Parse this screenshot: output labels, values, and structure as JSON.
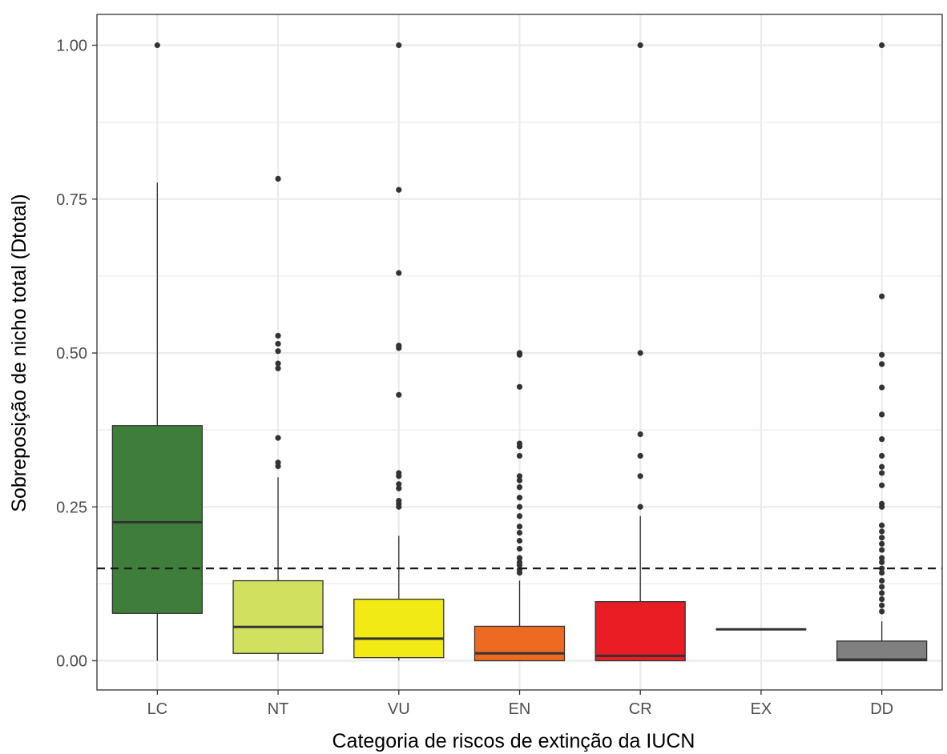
{
  "chart_data": {
    "type": "boxplot",
    "xlabel": "Categoria de riscos de extinção da IUCN",
    "ylabel": "Sobreposição de nicho total (Dtotal)",
    "ylim": [
      -0.048,
      1.048
    ],
    "yticks": [
      "0.00",
      "0.25",
      "0.50",
      "0.75",
      "1.00"
    ],
    "ytick_values": [
      0,
      0.25,
      0.5,
      0.75,
      1.0
    ],
    "grid": true,
    "reference_line": {
      "y": 0.15,
      "style": "dashed"
    },
    "categories": [
      "LC",
      "NT",
      "VU",
      "EN",
      "CR",
      "EX",
      "DD"
    ],
    "boxes": [
      {
        "category": "LC",
        "color": "#3f7d3a",
        "min": 0.0,
        "q1": 0.077,
        "median": 0.225,
        "q3": 0.382,
        "max": 0.777,
        "outliers": [
          1.0
        ]
      },
      {
        "category": "NT",
        "color": "#d1e05e",
        "min": 0.0,
        "q1": 0.012,
        "median": 0.055,
        "q3": 0.13,
        "max": 0.298,
        "outliers": [
          0.316,
          0.322,
          0.362,
          0.475,
          0.483,
          0.503,
          0.515,
          0.528,
          0.783
        ]
      },
      {
        "category": "VU",
        "color": "#f2ea14",
        "min": 0.0,
        "q1": 0.005,
        "median": 0.036,
        "q3": 0.1,
        "max": 0.203,
        "outliers": [
          0.25,
          0.255,
          0.26,
          0.28,
          0.287,
          0.3,
          0.305,
          0.432,
          0.508,
          0.512,
          0.63,
          0.765,
          1.0
        ]
      },
      {
        "category": "EN",
        "color": "#ee6a22",
        "min": 0.0,
        "q1": 0.0,
        "median": 0.012,
        "q3": 0.056,
        "max": 0.13,
        "outliers": [
          0.143,
          0.148,
          0.155,
          0.16,
          0.167,
          0.182,
          0.195,
          0.208,
          0.218,
          0.235,
          0.25,
          0.265,
          0.282,
          0.293,
          0.3,
          0.333,
          0.348,
          0.353,
          0.445,
          0.497,
          0.5
        ]
      },
      {
        "category": "CR",
        "color": "#ea1c24",
        "min": 0.0,
        "q1": 0.0,
        "median": 0.008,
        "q3": 0.096,
        "max": 0.235,
        "outliers": [
          0.25,
          0.3,
          0.333,
          0.368,
          0.5,
          1.0
        ]
      },
      {
        "category": "EX",
        "color": "#555555",
        "min": 0.051,
        "q1": 0.051,
        "median": 0.051,
        "q3": 0.051,
        "max": 0.051,
        "outliers": []
      },
      {
        "category": "DD",
        "color": "#808080",
        "min": 0.0,
        "q1": 0.0,
        "median": 0.002,
        "q3": 0.032,
        "max": 0.064,
        "outliers": [
          0.08,
          0.09,
          0.1,
          0.11,
          0.12,
          0.13,
          0.143,
          0.15,
          0.16,
          0.167,
          0.18,
          0.19,
          0.2,
          0.21,
          0.22,
          0.25,
          0.255,
          0.285,
          0.305,
          0.315,
          0.333,
          0.36,
          0.4,
          0.444,
          0.482,
          0.497,
          0.592,
          1.0
        ]
      }
    ]
  }
}
